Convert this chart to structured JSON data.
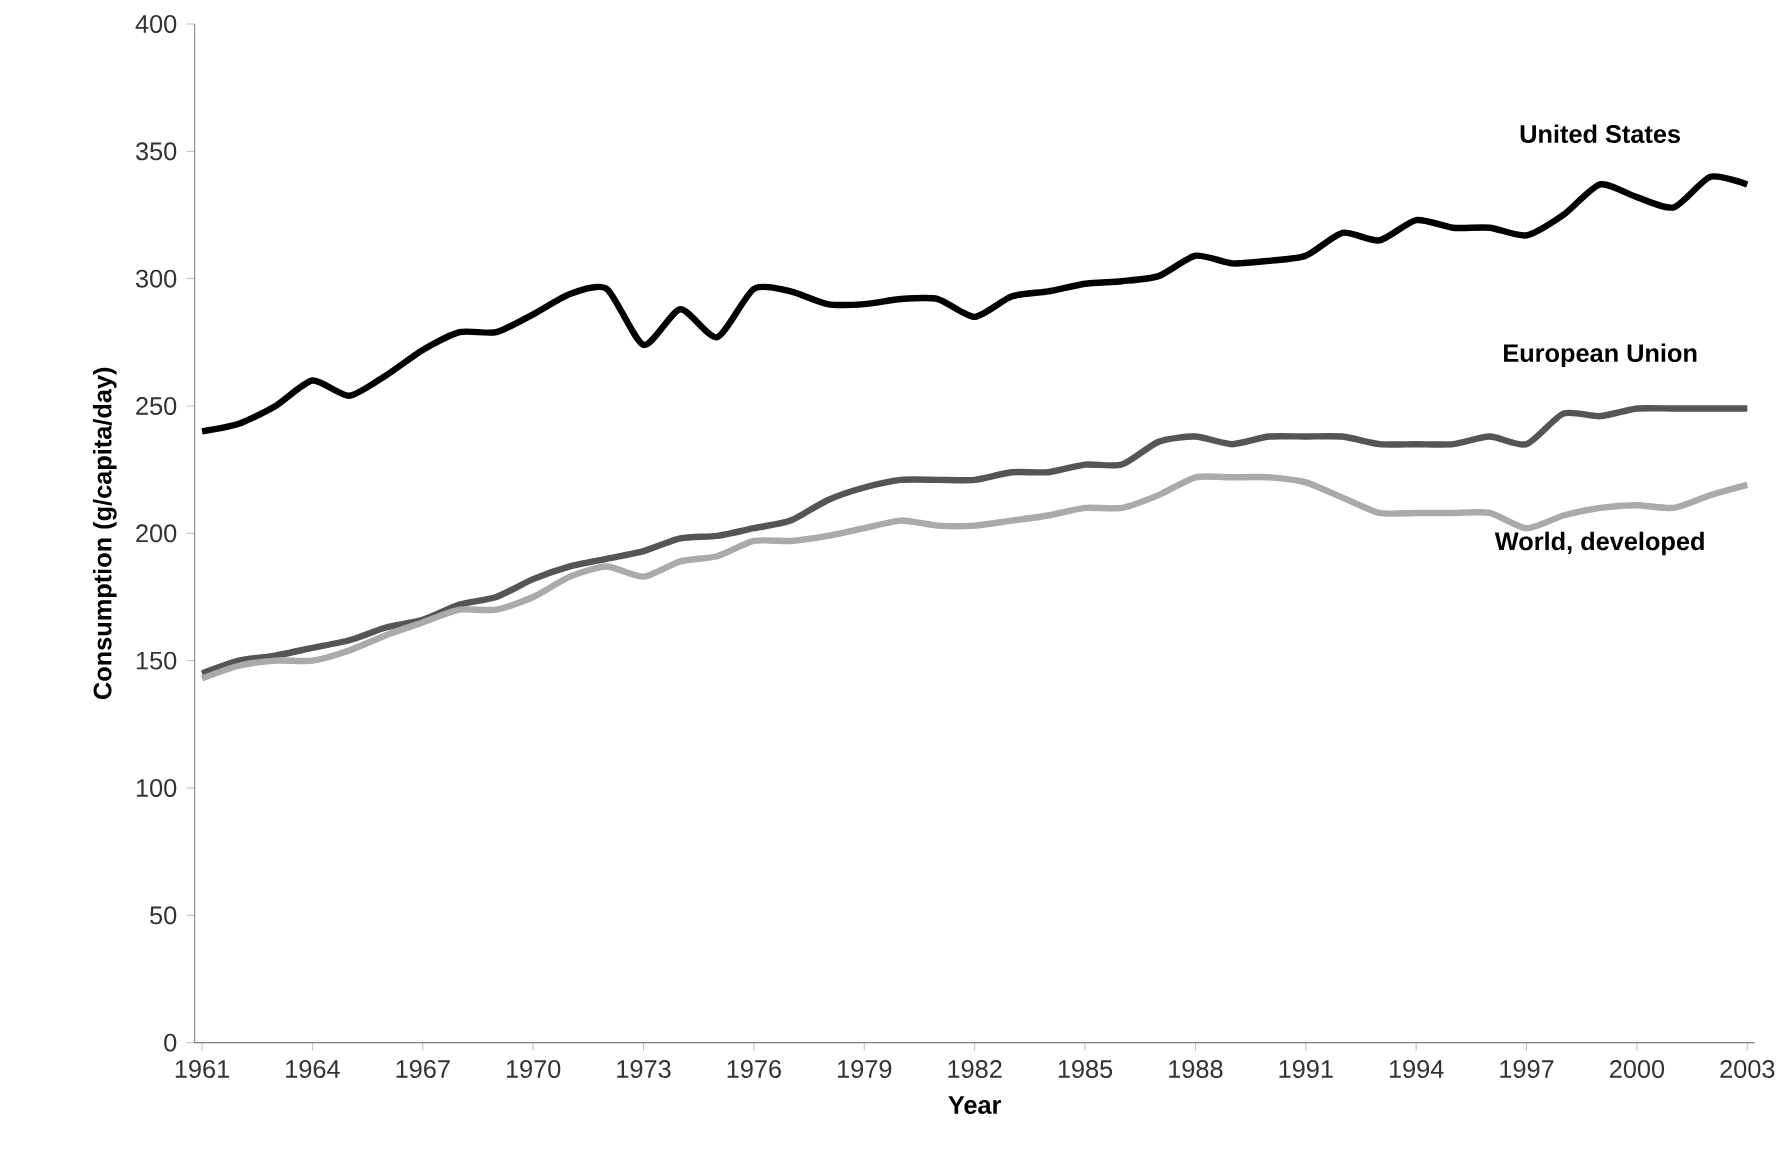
{
  "chart_data": {
    "type": "line",
    "xlabel": "Year",
    "ylabel": "Consumption (g/capita/day)",
    "x": [
      1961,
      1962,
      1963,
      1964,
      1965,
      1966,
      1967,
      1968,
      1969,
      1970,
      1971,
      1972,
      1973,
      1974,
      1975,
      1976,
      1977,
      1978,
      1979,
      1980,
      1981,
      1982,
      1983,
      1984,
      1985,
      1986,
      1987,
      1988,
      1989,
      1990,
      1991,
      1992,
      1993,
      1994,
      1995,
      1996,
      1997,
      1998,
      1999,
      2000,
      2001,
      2002,
      2003
    ],
    "series": [
      {
        "name": "United States",
        "color": "#000000",
        "values": [
          240,
          243,
          250,
          260,
          254,
          262,
          272,
          279,
          279,
          286,
          294,
          296,
          274,
          288,
          277,
          296,
          295,
          290,
          290,
          292,
          292,
          285,
          293,
          295,
          298,
          299,
          301,
          309,
          306,
          307,
          309,
          318,
          315,
          323,
          320,
          320,
          317,
          325,
          337,
          332,
          328,
          340,
          337
        ]
      },
      {
        "name": "European Union",
        "color": "#555555",
        "values": [
          145,
          150,
          152,
          155,
          158,
          163,
          166,
          172,
          175,
          182,
          187,
          190,
          193,
          198,
          199,
          202,
          205,
          213,
          218,
          221,
          221,
          221,
          224,
          224,
          227,
          227,
          236,
          238,
          235,
          238,
          238,
          238,
          235,
          235,
          235,
          238,
          235,
          247,
          246,
          249,
          249,
          249,
          249
        ]
      },
      {
        "name": "World, developed",
        "color": "#aaaaaa",
        "values": [
          143,
          148,
          150,
          150,
          154,
          160,
          165,
          170,
          170,
          175,
          183,
          187,
          183,
          189,
          191,
          197,
          197,
          199,
          202,
          205,
          203,
          203,
          205,
          207,
          210,
          210,
          215,
          222,
          222,
          222,
          220,
          214,
          208,
          208,
          208,
          208,
          202,
          207,
          210,
          211,
          210,
          215,
          219
        ]
      }
    ],
    "xlim": [
      1961,
      2003
    ],
    "xticks": [
      1961,
      1964,
      1967,
      1970,
      1973,
      1976,
      1979,
      1982,
      1985,
      1988,
      1991,
      1994,
      1997,
      2000,
      2003
    ],
    "ylim": [
      0,
      400
    ],
    "yticks": [
      0,
      50,
      100,
      150,
      200,
      250,
      300,
      350,
      400
    ],
    "grid": false,
    "legend": false,
    "marker": "none",
    "line_style": "solid"
  }
}
